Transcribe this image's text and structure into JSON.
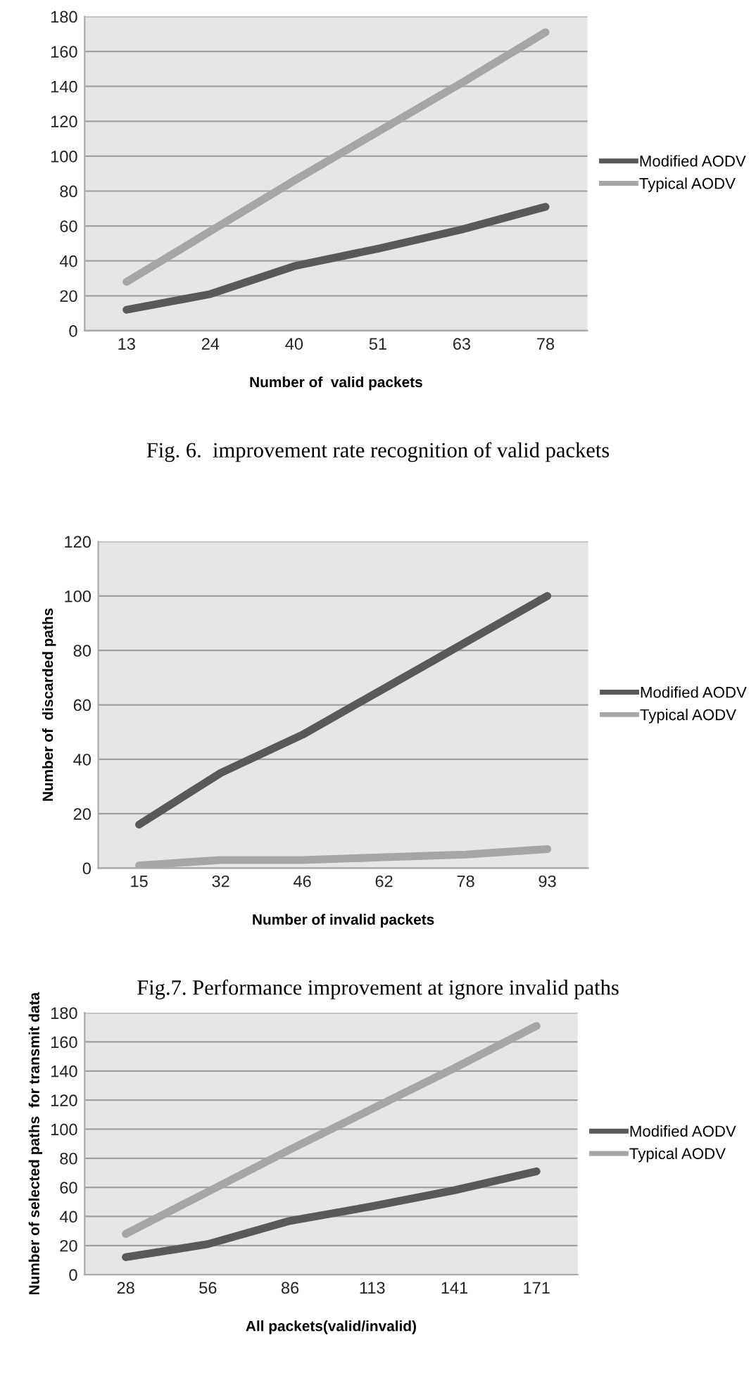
{
  "chart_data": [
    {
      "type": "line",
      "xlabel": "Number of  valid packets",
      "categories": [
        "13",
        "24",
        "40",
        "51",
        "63",
        "78"
      ],
      "series": [
        {
          "name": "Modified AODV",
          "color": "#595959",
          "values": [
            12,
            21,
            37,
            47,
            58,
            71
          ]
        },
        {
          "name": "Typical AODV",
          "color": "#a6a6a6",
          "values": [
            28,
            57,
            86,
            114,
            142,
            171
          ]
        }
      ],
      "ylim": [
        0,
        180
      ],
      "yticks": [
        0,
        20,
        40,
        60,
        80,
        100,
        120,
        140,
        160,
        180
      ],
      "grid": "y",
      "legend": "right",
      "marker": "none",
      "line_style": "solid",
      "annotations": [
        "Fig. 6.  improvement rate recognition of valid packets"
      ]
    },
    {
      "type": "line",
      "xlabel": "Number of invalid packets",
      "ylabel": "Number of  discarded paths",
      "categories": [
        "15",
        "32",
        "46",
        "62",
        "78",
        "93"
      ],
      "series": [
        {
          "name": "Modified AODV",
          "color": "#595959",
          "values": [
            16,
            35,
            49,
            66,
            83,
            100
          ]
        },
        {
          "name": "Typical AODV",
          "color": "#a6a6a6",
          "values": [
            1,
            3,
            3,
            4,
            5,
            7
          ]
        }
      ],
      "ylim": [
        0,
        120
      ],
      "yticks": [
        0,
        20,
        40,
        60,
        80,
        100,
        120
      ],
      "grid": "y",
      "legend": "right",
      "marker": "none",
      "line_style": "solid",
      "annotations": [
        "Fig.7. Performance improvement at ignore invalid paths"
      ]
    },
    {
      "type": "line",
      "xlabel": "All packets(valid/invalid)",
      "ylabel": "Number of selected paths  for transmit data",
      "categories": [
        "28",
        "56",
        "86",
        "113",
        "141",
        "171"
      ],
      "series": [
        {
          "name": "Modified AODV",
          "color": "#595959",
          "values": [
            12,
            21,
            37,
            47,
            58,
            71
          ]
        },
        {
          "name": "Typical AODV",
          "color": "#a6a6a6",
          "values": [
            28,
            57,
            86,
            114,
            142,
            171
          ]
        }
      ],
      "ylim": [
        0,
        180
      ],
      "yticks": [
        0,
        20,
        40,
        60,
        80,
        100,
        120,
        140,
        160,
        180
      ],
      "grid": "y",
      "legend": "right",
      "marker": "none",
      "line_style": "solid"
    }
  ]
}
